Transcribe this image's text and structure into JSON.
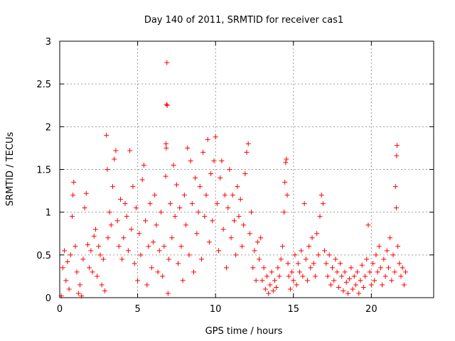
{
  "chart_data": {
    "type": "scatter",
    "title": "Day 140 of 2011, SRMTID for receiver cas1",
    "xlabel": "GPS time / hours",
    "ylabel": "SRMTID / TECUs",
    "xlim": [
      0,
      24
    ],
    "ylim": [
      0,
      3
    ],
    "x_ticks": [
      0,
      5,
      10,
      15,
      20
    ],
    "x_tick_labels": [
      "0",
      "5",
      "10",
      "15",
      "20"
    ],
    "y_ticks": [
      0,
      0.5,
      1,
      1.5,
      2,
      2.5,
      3
    ],
    "y_tick_labels": [
      "0",
      "0.5",
      "1",
      "1.5",
      "2",
      "2.5",
      "3"
    ],
    "grid": true,
    "marker": "+",
    "color": "#ff0000",
    "series": [
      {
        "name": "cas1",
        "points": [
          [
            0.1,
            0.02
          ],
          [
            0.2,
            0.35
          ],
          [
            0.3,
            0.55
          ],
          [
            0.4,
            0.2
          ],
          [
            0.5,
            0.42
          ],
          [
            0.6,
            0.1
          ],
          [
            0.7,
            0.5
          ],
          [
            0.8,
            0.95
          ],
          [
            0.85,
            1.2
          ],
          [
            0.9,
            1.35
          ],
          [
            1.0,
            0.6
          ],
          [
            1.1,
            0.3
          ],
          [
            1.2,
            0.05
          ],
          [
            1.3,
            0.15
          ],
          [
            1.4,
            0.02
          ],
          [
            1.5,
            0.45
          ],
          [
            1.6,
            1.05
          ],
          [
            1.7,
            1.22
          ],
          [
            1.8,
            0.62
          ],
          [
            1.9,
            0.35
          ],
          [
            2.0,
            0.55
          ],
          [
            2.1,
            0.3
          ],
          [
            2.2,
            0.72
          ],
          [
            2.3,
            0.8
          ],
          [
            2.4,
            0.25
          ],
          [
            2.5,
            0.6
          ],
          [
            2.6,
            0.5
          ],
          [
            2.7,
            0.15
          ],
          [
            2.8,
            0.45
          ],
          [
            2.9,
            0.08
          ],
          [
            3.0,
            1.9
          ],
          [
            3.05,
            1.5
          ],
          [
            3.1,
            0.7
          ],
          [
            3.2,
            1.0
          ],
          [
            3.3,
            0.85
          ],
          [
            3.4,
            1.3
          ],
          [
            3.5,
            1.62
          ],
          [
            3.6,
            1.72
          ],
          [
            3.7,
            0.9
          ],
          [
            3.8,
            0.6
          ],
          [
            3.9,
            1.15
          ],
          [
            4.0,
            0.45
          ],
          [
            4.1,
            0.7
          ],
          [
            4.2,
            1.1
          ],
          [
            4.3,
            0.95
          ],
          [
            4.4,
            0.55
          ],
          [
            4.5,
            1.72
          ],
          [
            4.6,
            0.8
          ],
          [
            4.7,
            1.3
          ],
          [
            4.8,
            0.4
          ],
          [
            4.9,
            1.05
          ],
          [
            5.0,
            0.2
          ],
          [
            5.1,
            0.75
          ],
          [
            5.2,
            0.5
          ],
          [
            5.3,
            1.38
          ],
          [
            5.4,
            1.55
          ],
          [
            5.5,
            0.9
          ],
          [
            5.6,
            0.15
          ],
          [
            5.7,
            0.6
          ],
          [
            5.8,
            1.1
          ],
          [
            5.9,
            0.35
          ],
          [
            6.0,
            0.65
          ],
          [
            6.1,
            1.2
          ],
          [
            6.2,
            0.85
          ],
          [
            6.3,
            0.3
          ],
          [
            6.4,
            0.55
          ],
          [
            6.5,
            1.0
          ],
          [
            6.6,
            0.25
          ],
          [
            6.7,
            0.6
          ],
          [
            6.8,
            1.42
          ],
          [
            6.82,
            1.8
          ],
          [
            6.84,
            1.75
          ],
          [
            6.85,
            2.26
          ],
          [
            6.88,
            2.75
          ],
          [
            6.9,
            2.25
          ],
          [
            6.95,
            0.05
          ],
          [
            7.0,
            0.45
          ],
          [
            7.1,
            1.1
          ],
          [
            7.2,
            0.7
          ],
          [
            7.3,
            1.55
          ],
          [
            7.4,
            0.95
          ],
          [
            7.5,
            1.32
          ],
          [
            7.6,
            0.4
          ],
          [
            7.7,
            1.05
          ],
          [
            7.8,
            0.6
          ],
          [
            7.9,
            0.2
          ],
          [
            8.0,
            1.2
          ],
          [
            8.1,
            0.85
          ],
          [
            8.2,
            1.75
          ],
          [
            8.3,
            0.5
          ],
          [
            8.4,
            1.6
          ],
          [
            8.5,
            1.1
          ],
          [
            8.6,
            0.3
          ],
          [
            8.7,
            1.4
          ],
          [
            8.8,
            0.75
          ],
          [
            8.9,
            1.0
          ],
          [
            9.0,
            1.3
          ],
          [
            9.1,
            0.45
          ],
          [
            9.2,
            1.7
          ],
          [
            9.3,
            0.95
          ],
          [
            9.4,
            1.2
          ],
          [
            9.5,
            1.85
          ],
          [
            9.6,
            0.65
          ],
          [
            9.7,
            1.45
          ],
          [
            9.8,
            0.9
          ],
          [
            9.9,
            1.6
          ],
          [
            10.0,
            1.88
          ],
          [
            10.1,
            1.1
          ],
          [
            10.2,
            0.55
          ],
          [
            10.3,
            1.4
          ],
          [
            10.4,
            1.6
          ],
          [
            10.5,
            0.8
          ],
          [
            10.6,
            1.2
          ],
          [
            10.7,
            0.35
          ],
          [
            10.8,
            1.05
          ],
          [
            10.9,
            1.5
          ],
          [
            11.0,
            0.7
          ],
          [
            11.1,
            1.2
          ],
          [
            11.2,
            0.9
          ],
          [
            11.3,
            0.5
          ],
          [
            11.4,
            1.3
          ],
          [
            11.5,
            0.95
          ],
          [
            11.6,
            1.15
          ],
          [
            11.7,
            0.6
          ],
          [
            11.8,
            0.85
          ],
          [
            11.9,
            1.45
          ],
          [
            12.0,
            1.7
          ],
          [
            12.1,
            1.8
          ],
          [
            12.2,
            0.75
          ],
          [
            12.3,
            1.0
          ],
          [
            12.4,
            0.35
          ],
          [
            12.5,
            0.55
          ],
          [
            12.6,
            0.2
          ],
          [
            12.7,
            0.65
          ],
          [
            12.8,
            0.45
          ],
          [
            12.9,
            0.7
          ],
          [
            13.0,
            0.2
          ],
          [
            13.1,
            0.35
          ],
          [
            13.2,
            0.1
          ],
          [
            13.3,
            0.25
          ],
          [
            13.4,
            0.05
          ],
          [
            13.5,
            0.15
          ],
          [
            13.6,
            0.3
          ],
          [
            13.7,
            0.08
          ],
          [
            13.8,
            0.2
          ],
          [
            13.9,
            0.12
          ],
          [
            14.0,
            0.35
          ],
          [
            14.1,
            0.25
          ],
          [
            14.2,
            0.45
          ],
          [
            14.3,
            0.6
          ],
          [
            14.4,
            1.0
          ],
          [
            14.45,
            1.35
          ],
          [
            14.5,
            1.58
          ],
          [
            14.55,
            1.62
          ],
          [
            14.6,
            1.2
          ],
          [
            14.65,
            0.4
          ],
          [
            14.7,
            0.25
          ],
          [
            14.8,
            0.1
          ],
          [
            14.9,
            0.3
          ],
          [
            15.0,
            0.2
          ],
          [
            15.1,
            0.5
          ],
          [
            15.2,
            0.15
          ],
          [
            15.3,
            0.4
          ],
          [
            15.4,
            0.3
          ],
          [
            15.5,
            0.55
          ],
          [
            15.6,
            0.25
          ],
          [
            15.7,
            1.1
          ],
          [
            15.8,
            0.45
          ],
          [
            15.9,
            0.2
          ],
          [
            16.0,
            0.6
          ],
          [
            16.1,
            0.35
          ],
          [
            16.2,
            0.7
          ],
          [
            16.3,
            0.4
          ],
          [
            16.4,
            0.25
          ],
          [
            16.5,
            0.75
          ],
          [
            16.6,
            0.5
          ],
          [
            16.7,
            0.95
          ],
          [
            16.8,
            1.2
          ],
          [
            16.9,
            1.1
          ],
          [
            17.0,
            0.55
          ],
          [
            17.1,
            0.4
          ],
          [
            17.2,
            0.25
          ],
          [
            17.3,
            0.5
          ],
          [
            17.4,
            0.15
          ],
          [
            17.5,
            0.35
          ],
          [
            17.6,
            0.2
          ],
          [
            17.7,
            0.45
          ],
          [
            17.8,
            0.3
          ],
          [
            17.9,
            0.12
          ],
          [
            18.0,
            0.4
          ],
          [
            18.1,
            0.25
          ],
          [
            18.2,
            0.08
          ],
          [
            18.3,
            0.3
          ],
          [
            18.4,
            0.18
          ],
          [
            18.5,
            0.05
          ],
          [
            18.6,
            0.22
          ],
          [
            18.7,
            0.35
          ],
          [
            18.8,
            0.1
          ],
          [
            18.9,
            0.25
          ],
          [
            19.0,
            0.15
          ],
          [
            19.1,
            0.3
          ],
          [
            19.2,
            0.05
          ],
          [
            19.3,
            0.2
          ],
          [
            19.4,
            0.38
          ],
          [
            19.5,
            0.12
          ],
          [
            19.6,
            0.25
          ],
          [
            19.7,
            0.45
          ],
          [
            19.8,
            0.85
          ],
          [
            19.9,
            0.3
          ],
          [
            20.0,
            0.15
          ],
          [
            20.1,
            0.4
          ],
          [
            20.2,
            0.2
          ],
          [
            20.3,
            0.5
          ],
          [
            20.4,
            0.3
          ],
          [
            20.5,
            0.6
          ],
          [
            20.6,
            0.35
          ],
          [
            20.7,
            0.15
          ],
          [
            20.8,
            0.45
          ],
          [
            20.9,
            0.25
          ],
          [
            21.0,
            0.55
          ],
          [
            21.1,
            0.35
          ],
          [
            21.2,
            0.7
          ],
          [
            21.3,
            0.2
          ],
          [
            21.4,
            0.5
          ],
          [
            21.5,
            0.3
          ],
          [
            21.55,
            1.3
          ],
          [
            21.6,
            1.05
          ],
          [
            21.62,
            1.66
          ],
          [
            21.65,
            1.78
          ],
          [
            21.7,
            0.6
          ],
          [
            21.8,
            0.4
          ],
          [
            21.9,
            0.25
          ],
          [
            22.0,
            0.35
          ],
          [
            22.1,
            0.15
          ],
          [
            22.2,
            0.3
          ]
        ]
      }
    ]
  }
}
